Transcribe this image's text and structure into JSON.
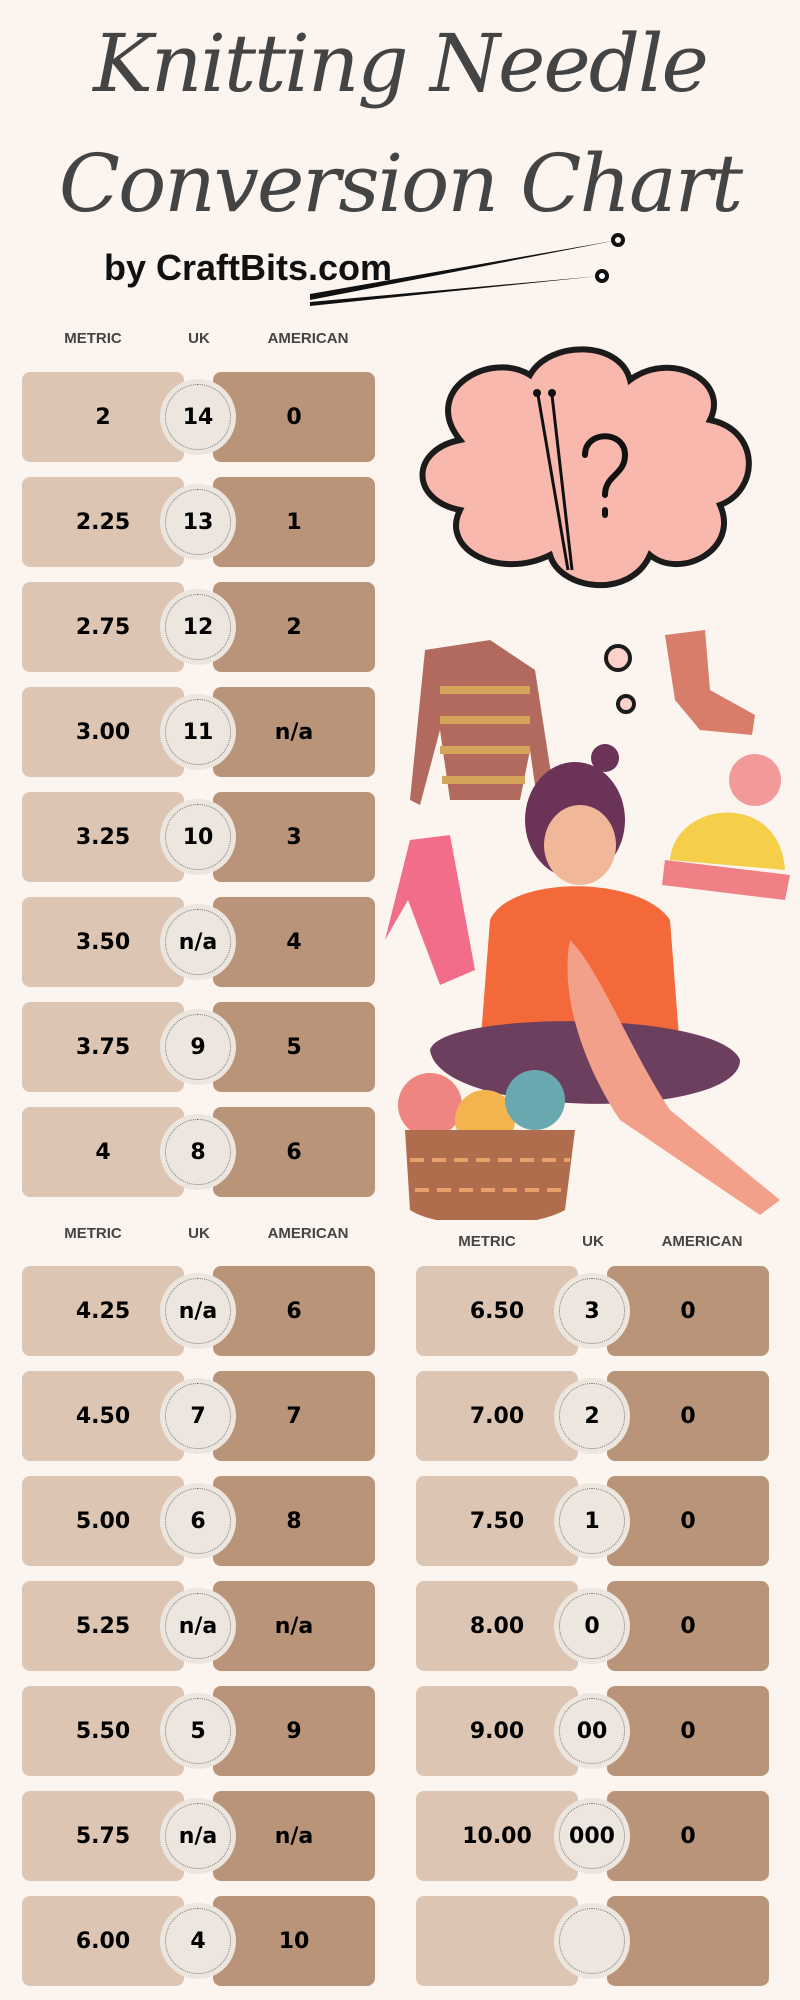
{
  "header": {
    "title_line1": "Knitting Needle",
    "title_line2": "Conversion Chart",
    "byline": "by CraftBits.com"
  },
  "colors": {
    "background": "#fbf4ef",
    "metric_cell": "#dcc6b3",
    "american_cell": "#b99478",
    "uk_circle": "#ece6df"
  },
  "tables": [
    {
      "columns": [
        "METRIC",
        "UK",
        "AMERICAN"
      ],
      "rows": [
        {
          "metric": "2",
          "uk": "14",
          "american": "0"
        },
        {
          "metric": "2.25",
          "uk": "13",
          "american": "1"
        },
        {
          "metric": "2.75",
          "uk": "12",
          "american": "2"
        },
        {
          "metric": "3.00",
          "uk": "11",
          "american": "n/a"
        },
        {
          "metric": "3.25",
          "uk": "10",
          "american": "3"
        },
        {
          "metric": "3.50",
          "uk": "n/a",
          "american": "4"
        },
        {
          "metric": "3.75",
          "uk": "9",
          "american": "5"
        },
        {
          "metric": "4",
          "uk": "8",
          "american": "6"
        }
      ]
    },
    {
      "columns": [
        "METRIC",
        "UK",
        "AMERICAN"
      ],
      "rows": [
        {
          "metric": "4.25",
          "uk": "n/a",
          "american": "6"
        },
        {
          "metric": "4.50",
          "uk": "7",
          "american": "7"
        },
        {
          "metric": "5.00",
          "uk": "6",
          "american": "8"
        },
        {
          "metric": "5.25",
          "uk": "n/a",
          "american": "n/a"
        },
        {
          "metric": "5.50",
          "uk": "5",
          "american": "9"
        },
        {
          "metric": "5.75",
          "uk": "n/a",
          "american": "n/a"
        },
        {
          "metric": "6.00",
          "uk": "4",
          "american": "10"
        }
      ]
    },
    {
      "columns": [
        "METRIC",
        "UK",
        "AMERICAN"
      ],
      "rows": [
        {
          "metric": "6.50",
          "uk": "3",
          "american": "0"
        },
        {
          "metric": "7.00",
          "uk": "2",
          "american": "0"
        },
        {
          "metric": "7.50",
          "uk": "1",
          "american": "0"
        },
        {
          "metric": "8.00",
          "uk": "0",
          "american": "0"
        },
        {
          "metric": "9.00",
          "uk": "00",
          "american": "0"
        },
        {
          "metric": "10.00",
          "uk": "000",
          "american": "0"
        },
        {
          "metric": "",
          "uk": "",
          "american": ""
        }
      ]
    }
  ],
  "illustration": {
    "icons": [
      "knitting-needles-icon",
      "thought-cloud-icon",
      "sweater-icon",
      "sock-icon",
      "beanie-icon",
      "scarf-icon",
      "knitting-woman-icon",
      "yarn-basket-icon"
    ]
  }
}
